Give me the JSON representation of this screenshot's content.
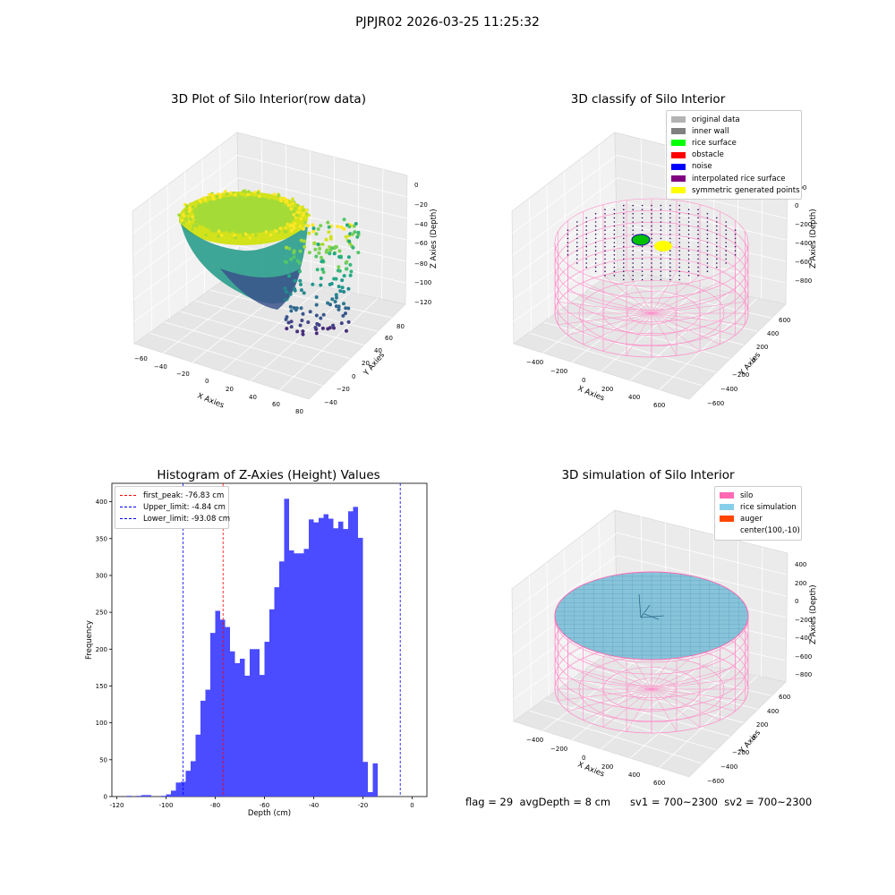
{
  "figure_title": "PJPJR02 2026-03-25 11:25:32",
  "panels": {
    "raw": {
      "title": "3D Plot of Silo Interior(row data)",
      "xlabel": "X Axies",
      "ylabel": "Y Axies",
      "zlabel": "Z Axies (Depth)",
      "xticks": [
        "−60",
        "−40",
        "−20",
        "0",
        "20",
        "40",
        "60",
        "80"
      ],
      "yticks": [
        "−40",
        "−20",
        "0",
        "20",
        "40",
        "60",
        "80"
      ],
      "zticks": [
        "0",
        "−20",
        "−40",
        "−60",
        "−80",
        "−100",
        "−120"
      ]
    },
    "classify": {
      "title": "3D classify of Silo Interior",
      "xlabel": "X Axies",
      "ylabel": "Y Axies",
      "zlabel": "Z Axies (Depth)",
      "xticks": [
        "−400",
        "−200",
        "0",
        "200",
        "400",
        "600"
      ],
      "yticks": [
        "−600",
        "−400",
        "−200",
        "0",
        "200",
        "400",
        "600"
      ],
      "zticks": [
        "200",
        "0",
        "−200",
        "−400",
        "−600",
        "−800"
      ],
      "legend": [
        {
          "label": "original data",
          "color": "#b3b3b3"
        },
        {
          "label": "inner wall",
          "color": "#808080"
        },
        {
          "label": "rice surface",
          "color": "#00ff00"
        },
        {
          "label": "obstacle",
          "color": "#ff0000"
        },
        {
          "label": "noise",
          "color": "#0000ff"
        },
        {
          "label": "interpolated rice surface",
          "color": "#800080"
        },
        {
          "label": "symmetric generated points",
          "color": "#ffff00"
        }
      ]
    },
    "simulation": {
      "title": "3D simulation of Silo Interior",
      "xlabel": "X Axies",
      "ylabel": "Y Axies",
      "zlabel": "Z Axies (Depth)",
      "xticks": [
        "−400",
        "−200",
        "0",
        "200",
        "400",
        "600"
      ],
      "yticks": [
        "−600",
        "−400",
        "−200",
        "0",
        "200",
        "400",
        "600"
      ],
      "zticks": [
        "400",
        "200",
        "0",
        "−200",
        "−400",
        "−600",
        "−800"
      ],
      "legend": [
        {
          "label": "silo",
          "color": "#ff69b4"
        },
        {
          "label": "rice simulation",
          "color": "#87ceeb"
        },
        {
          "label": "auger",
          "color": "#ff4500"
        },
        {
          "label": "center(100,-10)",
          "color": ""
        }
      ]
    }
  },
  "footer": {
    "flag": "flag = 29",
    "avg": "avgDepth = 8 cm",
    "sv1": "sv1 = 700~2300",
    "sv2": "sv2 = 700~2300"
  },
  "chart_data": {
    "type": "bar",
    "title": "Histogram of Z-Axies (Height) Values",
    "xlabel": "Depth (cm)",
    "ylabel": "Frequency",
    "xlim": [
      -122,
      6
    ],
    "ylim": [
      0,
      425
    ],
    "xticks": [
      -120,
      -100,
      -80,
      -60,
      -40,
      -20,
      0
    ],
    "yticks": [
      0,
      50,
      100,
      150,
      200,
      250,
      300,
      350,
      400
    ],
    "bar_color": "#4b4bff",
    "bins": [
      {
        "x0": -116,
        "x1": -114,
        "count": 1
      },
      {
        "x0": -112,
        "x1": -110,
        "count": 1
      },
      {
        "x0": -110,
        "x1": -108,
        "count": 2
      },
      {
        "x0": -108,
        "x1": -106,
        "count": 2
      },
      {
        "x0": -102,
        "x1": -100,
        "count": 1
      },
      {
        "x0": -100,
        "x1": -98,
        "count": 3
      },
      {
        "x0": -98,
        "x1": -96,
        "count": 8
      },
      {
        "x0": -96,
        "x1": -94,
        "count": 19
      },
      {
        "x0": -94,
        "x1": -92,
        "count": 20
      },
      {
        "x0": -92,
        "x1": -90,
        "count": 35
      },
      {
        "x0": -90,
        "x1": -88,
        "count": 48
      },
      {
        "x0": -88,
        "x1": -86,
        "count": 84
      },
      {
        "x0": -86,
        "x1": -84,
        "count": 130
      },
      {
        "x0": -84,
        "x1": -82,
        "count": 145
      },
      {
        "x0": -82,
        "x1": -80,
        "count": 222
      },
      {
        "x0": -80,
        "x1": -78,
        "count": 252
      },
      {
        "x0": -78,
        "x1": -76,
        "count": 240
      },
      {
        "x0": -76,
        "x1": -74,
        "count": 230
      },
      {
        "x0": -74,
        "x1": -72,
        "count": 197
      },
      {
        "x0": -72,
        "x1": -70,
        "count": 181
      },
      {
        "x0": -70,
        "x1": -68,
        "count": 187
      },
      {
        "x0": -68,
        "x1": -66,
        "count": 164
      },
      {
        "x0": -66,
        "x1": -64,
        "count": 200
      },
      {
        "x0": -64,
        "x1": -62,
        "count": 200
      },
      {
        "x0": -62,
        "x1": -60,
        "count": 165
      },
      {
        "x0": -60,
        "x1": -58,
        "count": 210
      },
      {
        "x0": -58,
        "x1": -56,
        "count": 254
      },
      {
        "x0": -56,
        "x1": -54,
        "count": 284
      },
      {
        "x0": -54,
        "x1": -52,
        "count": 319
      },
      {
        "x0": -52,
        "x1": -50,
        "count": 404
      },
      {
        "x0": -50,
        "x1": -48,
        "count": 334
      },
      {
        "x0": -48,
        "x1": -46,
        "count": 330
      },
      {
        "x0": -46,
        "x1": -44,
        "count": 330
      },
      {
        "x0": -44,
        "x1": -42,
        "count": 336
      },
      {
        "x0": -42,
        "x1": -40,
        "count": 376
      },
      {
        "x0": -40,
        "x1": -38,
        "count": 372
      },
      {
        "x0": -38,
        "x1": -36,
        "count": 378
      },
      {
        "x0": -36,
        "x1": -34,
        "count": 383
      },
      {
        "x0": -34,
        "x1": -32,
        "count": 377
      },
      {
        "x0": -32,
        "x1": -30,
        "count": 364
      },
      {
        "x0": -30,
        "x1": -28,
        "count": 373
      },
      {
        "x0": -28,
        "x1": -26,
        "count": 363
      },
      {
        "x0": -26,
        "x1": -24,
        "count": 387
      },
      {
        "x0": -24,
        "x1": -22,
        "count": 393
      },
      {
        "x0": -22,
        "x1": -20,
        "count": 351
      },
      {
        "x0": -20,
        "x1": -18,
        "count": 47
      },
      {
        "x0": -18,
        "x1": -16,
        "count": 6
      },
      {
        "x0": -16,
        "x1": -14,
        "count": 45
      }
    ],
    "vlines": [
      {
        "label": "first_peak: -76.83 cm",
        "x": -76.83,
        "color": "#ff0000"
      },
      {
        "label": "Upper_limit: -4.84 cm",
        "x": -4.84,
        "color": "#0000ff"
      },
      {
        "label": "Lower_limit: -93.08 cm",
        "x": -93.08,
        "color": "#0000ff"
      }
    ]
  }
}
